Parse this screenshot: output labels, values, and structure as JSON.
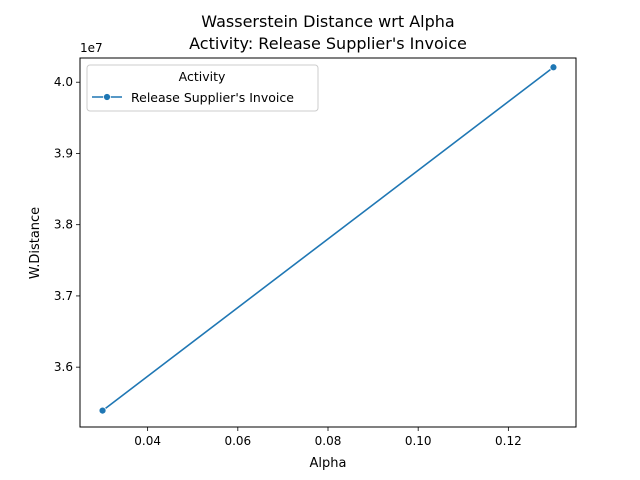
{
  "chart_data": {
    "type": "line",
    "title_line1": "Wasserstein Distance wrt Alpha",
    "title_line2": "Activity: Release Supplier's Invoice",
    "xlabel": "Alpha",
    "ylabel": "W.Distance",
    "y_offset_text": "1e7",
    "legend_title": "Activity",
    "legend_position": "top-left",
    "grid": false,
    "xlim": [
      0.025,
      0.135
    ],
    "ylim": [
      35160000,
      40340000
    ],
    "x_ticks": [
      0.04,
      0.06,
      0.08,
      0.1,
      0.12
    ],
    "x_tick_labels": [
      "0.04",
      "0.06",
      "0.08",
      "0.10",
      "0.12"
    ],
    "y_ticks": [
      36000000,
      37000000,
      38000000,
      39000000,
      40000000
    ],
    "y_tick_labels": [
      "3.6",
      "3.7",
      "3.8",
      "3.9",
      "4.0"
    ],
    "series": [
      {
        "name": "Release Supplier's Invoice",
        "color": "#1f77b4",
        "marker": "circle",
        "x": [
          0.03,
          0.13
        ],
        "y": [
          35390000,
          40210000
        ]
      }
    ]
  }
}
